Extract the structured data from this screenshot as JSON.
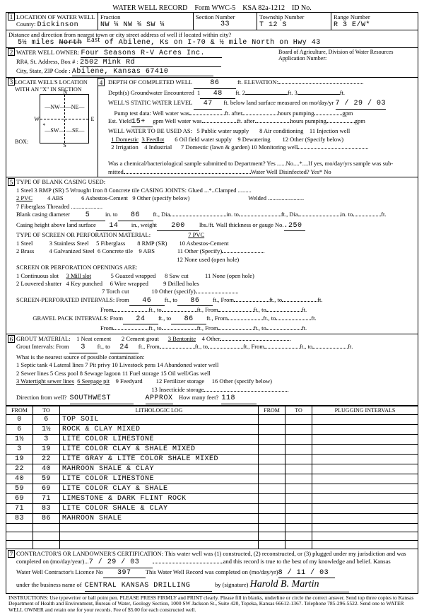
{
  "header": {
    "title": "WATER WELL RECORD",
    "form": "Form WWC-5",
    "ksa": "KSA 82a-1212",
    "id_lbl": "ID No."
  },
  "s1": {
    "title": "LOCATION OF WATER WELL",
    "county_lbl": "County:",
    "county": "Dickinson",
    "frac_lbl": "Fraction",
    "frac": "NW  ¼   NW  ¼   SW  ¼",
    "sec_lbl": "Section Number",
    "sec": "33",
    "twp_lbl": "Township Number",
    "twp": "T   12   S",
    "rng_lbl": "Range Number",
    "rng": "R   3       E/W*",
    "dist_lbl": "Distance and direction from nearest town or city street address of well if located within city?",
    "dist": "5½ miles East of Abilene, Ks on I-70 & ½ mile North on Hwy 43",
    "strike": "North"
  },
  "s2": {
    "title": "WATER WELL OWNER:",
    "owner": "Four Seasons R-V Acres Inc.",
    "addr_lbl": "RR#, St. Address, Box #   :",
    "addr": "2502 Mink Rd",
    "city_lbl": "City, State, ZIP Code      :",
    "city": "Abilene, Kansas  67410",
    "board": "Board of Agriculture, Division of Water Resources",
    "app": "Application Number:"
  },
  "s3": {
    "title": "LOCATE WELL'S LOCATION WITH AN \"X\" IN SECTION BOX:",
    "n": "N",
    "s": "S",
    "e": "E",
    "w": "W",
    "nw": "NW",
    "ne": "NE",
    "sw": "SW",
    "se": "SE"
  },
  "s4": {
    "depth_lbl": "DEPTH OF COMPLETED WELL",
    "depth": "86",
    "elev_lbl": "ft. ELEVATION:",
    "gw_lbl": "Depth(s) Groundwater Encountered",
    "gw1": "48",
    "swl_lbl": "WELL'S STATIC WATER LEVEL",
    "swl": "47",
    "swl_after": "ft. below land surface measured on mo/day/yr",
    "swl_date": "7 / 29 / 03",
    "pump_lbl": "Pump test data:  Well water was",
    "after1": "ft. after",
    "hrs1": "hours pumping",
    "gpm1": "gpm",
    "est_lbl": "Est. Yield",
    "est": "15+",
    "est_gpm": "gpm   Well water was",
    "after2": "ft. after",
    "hrs2": "hours pumping",
    "gpm2": "gpm",
    "use_lbl": "WELL WATER TO BE USED AS:",
    "uses": "1 Domestic   3 Feedlot         5 Public water supply              8 Air conditioning      11 Injection well\n2 Irrigation    4 Industrial      6 Oil field water supply            9 Dewatering              12 Other (Specify below)\n                                         7 Domestic (lawn & garden)   10 Monitoring well",
    "dom": "1 Domestic",
    "feed": "3 Feedlot",
    "chem": "Was a chemical/bacteriological sample submitted to Department? Yes ......No....*....If yes, mo/day/yrs sample was sub-",
    "mitted": "mitted",
    "wdis": "Water Well Disinfected? Yes*   No"
  },
  "s5": {
    "title": "TYPE OF BLANK CASING USED:",
    "opts1": "1 Steel           3 RMP (SR)       5 Wrought Iron           8 Concrete tile              CASING JOINTS: Glued ...*..Clamped .........",
    "opts2": "2 PVC            4 ABS               6 Asbestos-Cement    9 Other (specify below)                              Welded ........................",
    "opts3": "                                              7 Fiberglass                                                                                    Threaded .....................",
    "bcd_lbl": "Blank casing diameter",
    "bcd": "5",
    "bcd_to": "in. to",
    "bcd2": "86",
    "bcd_ft": "ft., Dia",
    "cht_lbl": "Casing height above land surface",
    "cht": "14",
    "wt_lbl": "in., weight",
    "wt": "200",
    "wt_after": "lbs./ft. Wall thickness or gauge No.",
    "gauge": ".250",
    "perf_title": "TYPE OF SCREEN OR PERFORATION MATERIAL:",
    "perf1": "1 Steel              3 Stainless Steel        5 Fiberglass           7 PVC                   10 Asbestos-Cement",
    "perf2": "2 Brass             4 Galvanized Steel     6 Concrete tile       8 RMP (SR)           11 Other (Specify)",
    "perf3": "                                                                                         9 ABS                    12 None used (open hole)",
    "open_title": "SCREEN OR PERFORATION OPENINGS ARE:",
    "open1": "1 Continuous slot        3 Mill slot                5 Guazed wrapped         8 Saw cut              11 None (open hole)",
    "open2": "2 Louvered shutter      4 Key punched         6 Wire wrapped             9 Drilled holes",
    "open3": "                                                                  7 Torch cut                   10 Other (specify)",
    "spi_lbl": "SCREEN-PERFORATED INTERVALS:     From",
    "spi_f": "46",
    "spi_t": "86",
    "gpi_lbl": "GRAVEL PACK INTERVALS:     From",
    "gpi_f": "24",
    "gpi_t": "86"
  },
  "s6": {
    "title": "GROUT MATERIAL:",
    "opts": "1 Neat cement          2 Cement grout          3 Bentonite        4 Other",
    "gi_lbl": "Grout Intervals:   From",
    "gi_f": "3",
    "gi_to": "ft., to",
    "gi_t": "24",
    "src_lbl": "What is the nearest source of possible contamination:",
    "src1": "1 Septic tank              4 Lateral lines          7 Pit privy              10 Livestock pens          14 Abandoned water well",
    "src2": "2 Sewer lines             5 Cess pool              8 Sewage lagoon    11 Fuel storage              15 Oil well/Gas well",
    "src3": "3 Watertight sewer lines  6 Seepage pit       9 Feedyard            12 Fertilizer storage        16 Other (specify below)",
    "src4": "                                                                                           13 Insecticide storage",
    "dir_lbl": "Direction from well?",
    "dir": "SOUTHWEST",
    "approx": "APPROX",
    "feet_lbl": "How many feet?",
    "feet": "118"
  },
  "log": {
    "h1": "FROM",
    "h2": "TO",
    "h3": "LITHOLOGIC LOG",
    "h4": "FROM",
    "h5": "TO",
    "h6": "PLUGGING INTERVALS",
    "rows": [
      [
        "0",
        "6",
        "TOP SOIL"
      ],
      [
        "6",
        "1½",
        "ROCK & CLAY MIXED"
      ],
      [
        "1½",
        "3",
        "LITE COLOR LIMESTONE"
      ],
      [
        "3",
        "19",
        "LITE COLOR CLAY & SHALE MIXED"
      ],
      [
        "19",
        "22",
        "LITE GRAY & LITE COLOR SHALE  MIXED"
      ],
      [
        "22",
        "40",
        "MAHROON SHALE & CLAY"
      ],
      [
        "40",
        "59",
        "LITE COLOR LIMESTONE"
      ],
      [
        "59",
        "69",
        "LITE COLOR CLAY & SHALE"
      ],
      [
        "69",
        "71",
        "LIMESTONE & DARK FLINT ROCK"
      ],
      [
        "71",
        "83",
        "LITE COLOR SHALE & CLAY"
      ],
      [
        "83",
        "86",
        "MAHROON SHALE"
      ]
    ]
  },
  "s7": {
    "cert": "CONTRACTOR'S OR LANDOWNER'S CERTIFICATION: This water well was (1) constructed, (2) reconstructed, or (3) plugged under my jurisdiction and was",
    "comp_lbl": "completed on (mo/day/year)...",
    "comp": "7 / 29 / 03",
    "rec": "and this record is true to the best of my knowledge and belief. Kansas",
    "lic_lbl": "Water Well Contractor's Licence No",
    "lic": "397",
    "wwr": "This Water Well Record was completed on (mo/day/yr)",
    "wwr_date": "8 / 11 / 03",
    "bus_lbl": "under the business name of",
    "bus": "CENTRAL KANSAS DRILLING",
    "sig_lbl": "by (signature)",
    "sig": "Harold B. Martin"
  },
  "instr": "INSTRUCTIONS: Use typewriter or ball point pen. PLEASE PRESS FIRMLY and PRINT clearly. Please fill in blanks, underline or circle the correct answer. Send top three copies to Kansas Department of Health and Environment, Bureau of Water, Geology Section, 1000 SW Jackson St., Suite 420, Topeka, Kansas 66612-1367. Telephone 785-296-5522. Send one to WATER WELL OWNER and retain one for your records. Fee of $5.00 for each constructed well."
}
